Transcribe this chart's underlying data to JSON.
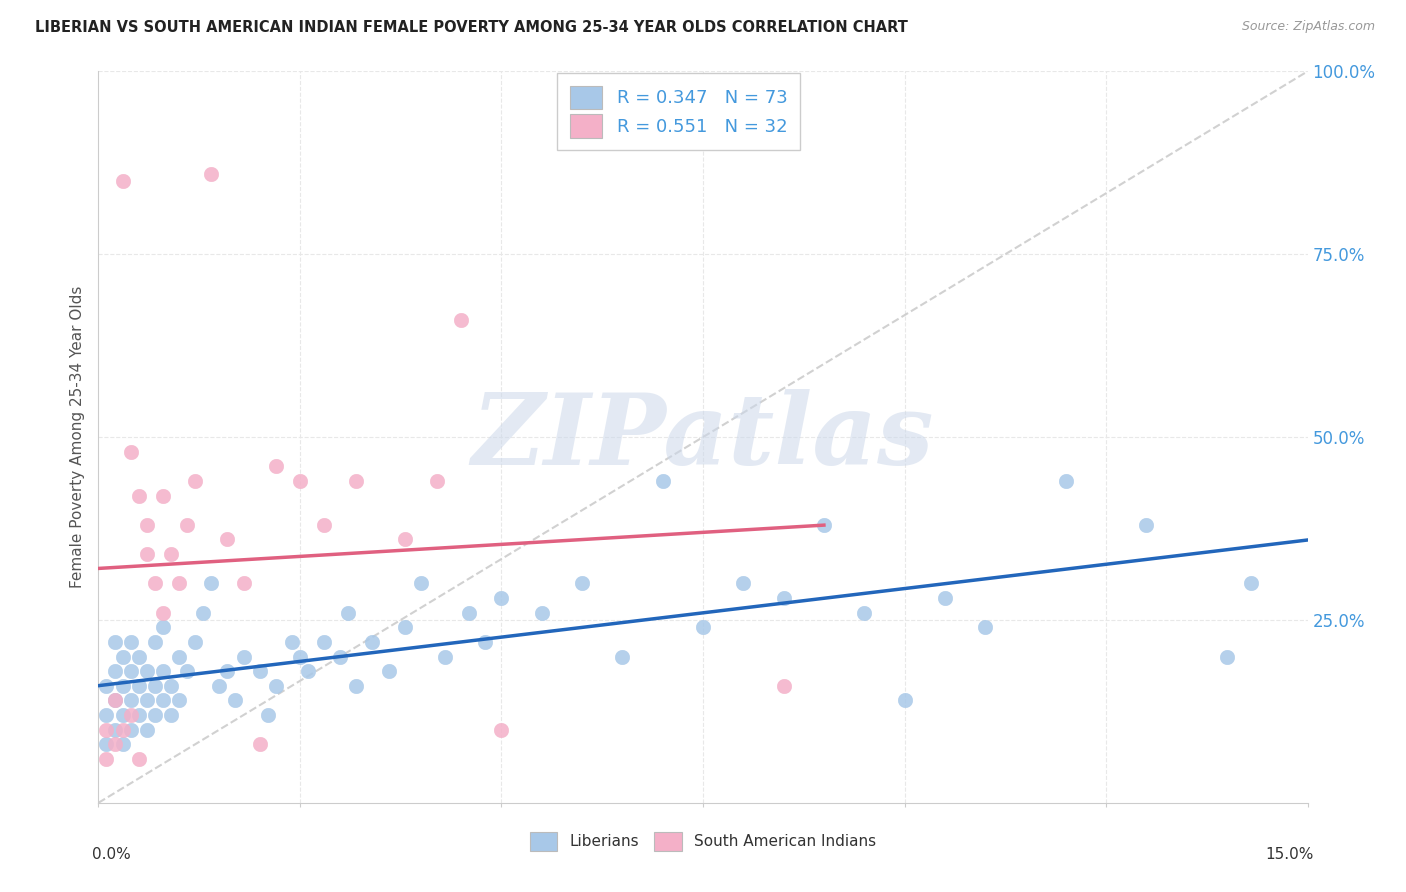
{
  "title": "LIBERIAN VS SOUTH AMERICAN INDIAN FEMALE POVERTY AMONG 25-34 YEAR OLDS CORRELATION CHART",
  "source": "Source: ZipAtlas.com",
  "ylabel": "Female Poverty Among 25-34 Year Olds",
  "liberian_R": 0.347,
  "liberian_N": 73,
  "south_american_R": 0.551,
  "south_american_N": 32,
  "liberian_color": "#a8c8e8",
  "south_american_color": "#f4b0c8",
  "liberian_line_color": "#2266bb",
  "south_american_line_color": "#e06080",
  "reference_line_color": "#cccccc",
  "grid_color": "#e8e8e8",
  "background_color": "#ffffff",
  "watermark_text": "ZIPatlas",
  "watermark_color": "#ccd8ea",
  "title_color": "#222222",
  "source_color": "#999999",
  "right_axis_color": "#4499dd",
  "xmin": 0.0,
  "xmax": 0.15,
  "ymin": 0.0,
  "ymax": 1.0,
  "yticks": [
    0.0,
    0.25,
    0.5,
    0.75,
    1.0
  ],
  "ytick_labels": [
    "",
    "25.0%",
    "50.0%",
    "75.0%",
    "100.0%"
  ],
  "lib_x": [
    0.001,
    0.001,
    0.001,
    0.002,
    0.002,
    0.002,
    0.002,
    0.003,
    0.003,
    0.003,
    0.003,
    0.004,
    0.004,
    0.004,
    0.004,
    0.005,
    0.005,
    0.005,
    0.006,
    0.006,
    0.006,
    0.007,
    0.007,
    0.007,
    0.008,
    0.008,
    0.008,
    0.009,
    0.009,
    0.01,
    0.01,
    0.011,
    0.012,
    0.013,
    0.014,
    0.015,
    0.016,
    0.017,
    0.018,
    0.02,
    0.021,
    0.022,
    0.024,
    0.025,
    0.026,
    0.028,
    0.03,
    0.031,
    0.032,
    0.034,
    0.036,
    0.038,
    0.04,
    0.043,
    0.046,
    0.048,
    0.05,
    0.055,
    0.06,
    0.065,
    0.07,
    0.075,
    0.08,
    0.085,
    0.09,
    0.095,
    0.1,
    0.105,
    0.11,
    0.12,
    0.13,
    0.14,
    0.143
  ],
  "lib_y": [
    0.08,
    0.12,
    0.16,
    0.1,
    0.14,
    0.18,
    0.22,
    0.08,
    0.12,
    0.16,
    0.2,
    0.1,
    0.14,
    0.18,
    0.22,
    0.12,
    0.16,
    0.2,
    0.1,
    0.14,
    0.18,
    0.12,
    0.16,
    0.22,
    0.14,
    0.18,
    0.24,
    0.12,
    0.16,
    0.14,
    0.2,
    0.18,
    0.22,
    0.26,
    0.3,
    0.16,
    0.18,
    0.14,
    0.2,
    0.18,
    0.12,
    0.16,
    0.22,
    0.2,
    0.18,
    0.22,
    0.2,
    0.26,
    0.16,
    0.22,
    0.18,
    0.24,
    0.3,
    0.2,
    0.26,
    0.22,
    0.28,
    0.26,
    0.3,
    0.2,
    0.44,
    0.24,
    0.3,
    0.28,
    0.38,
    0.26,
    0.14,
    0.28,
    0.24,
    0.44,
    0.38,
    0.2,
    0.3
  ],
  "sa_x": [
    0.001,
    0.001,
    0.002,
    0.002,
    0.003,
    0.003,
    0.004,
    0.004,
    0.005,
    0.005,
    0.006,
    0.006,
    0.007,
    0.008,
    0.008,
    0.009,
    0.01,
    0.011,
    0.012,
    0.014,
    0.016,
    0.018,
    0.02,
    0.022,
    0.025,
    0.028,
    0.032,
    0.038,
    0.042,
    0.045,
    0.05,
    0.085
  ],
  "sa_y": [
    0.06,
    0.1,
    0.08,
    0.14,
    0.1,
    0.85,
    0.12,
    0.48,
    0.06,
    0.42,
    0.38,
    0.34,
    0.3,
    0.26,
    0.42,
    0.34,
    0.3,
    0.38,
    0.44,
    0.86,
    0.36,
    0.3,
    0.08,
    0.46,
    0.44,
    0.38,
    0.44,
    0.36,
    0.44,
    0.66,
    0.1,
    0.16
  ]
}
